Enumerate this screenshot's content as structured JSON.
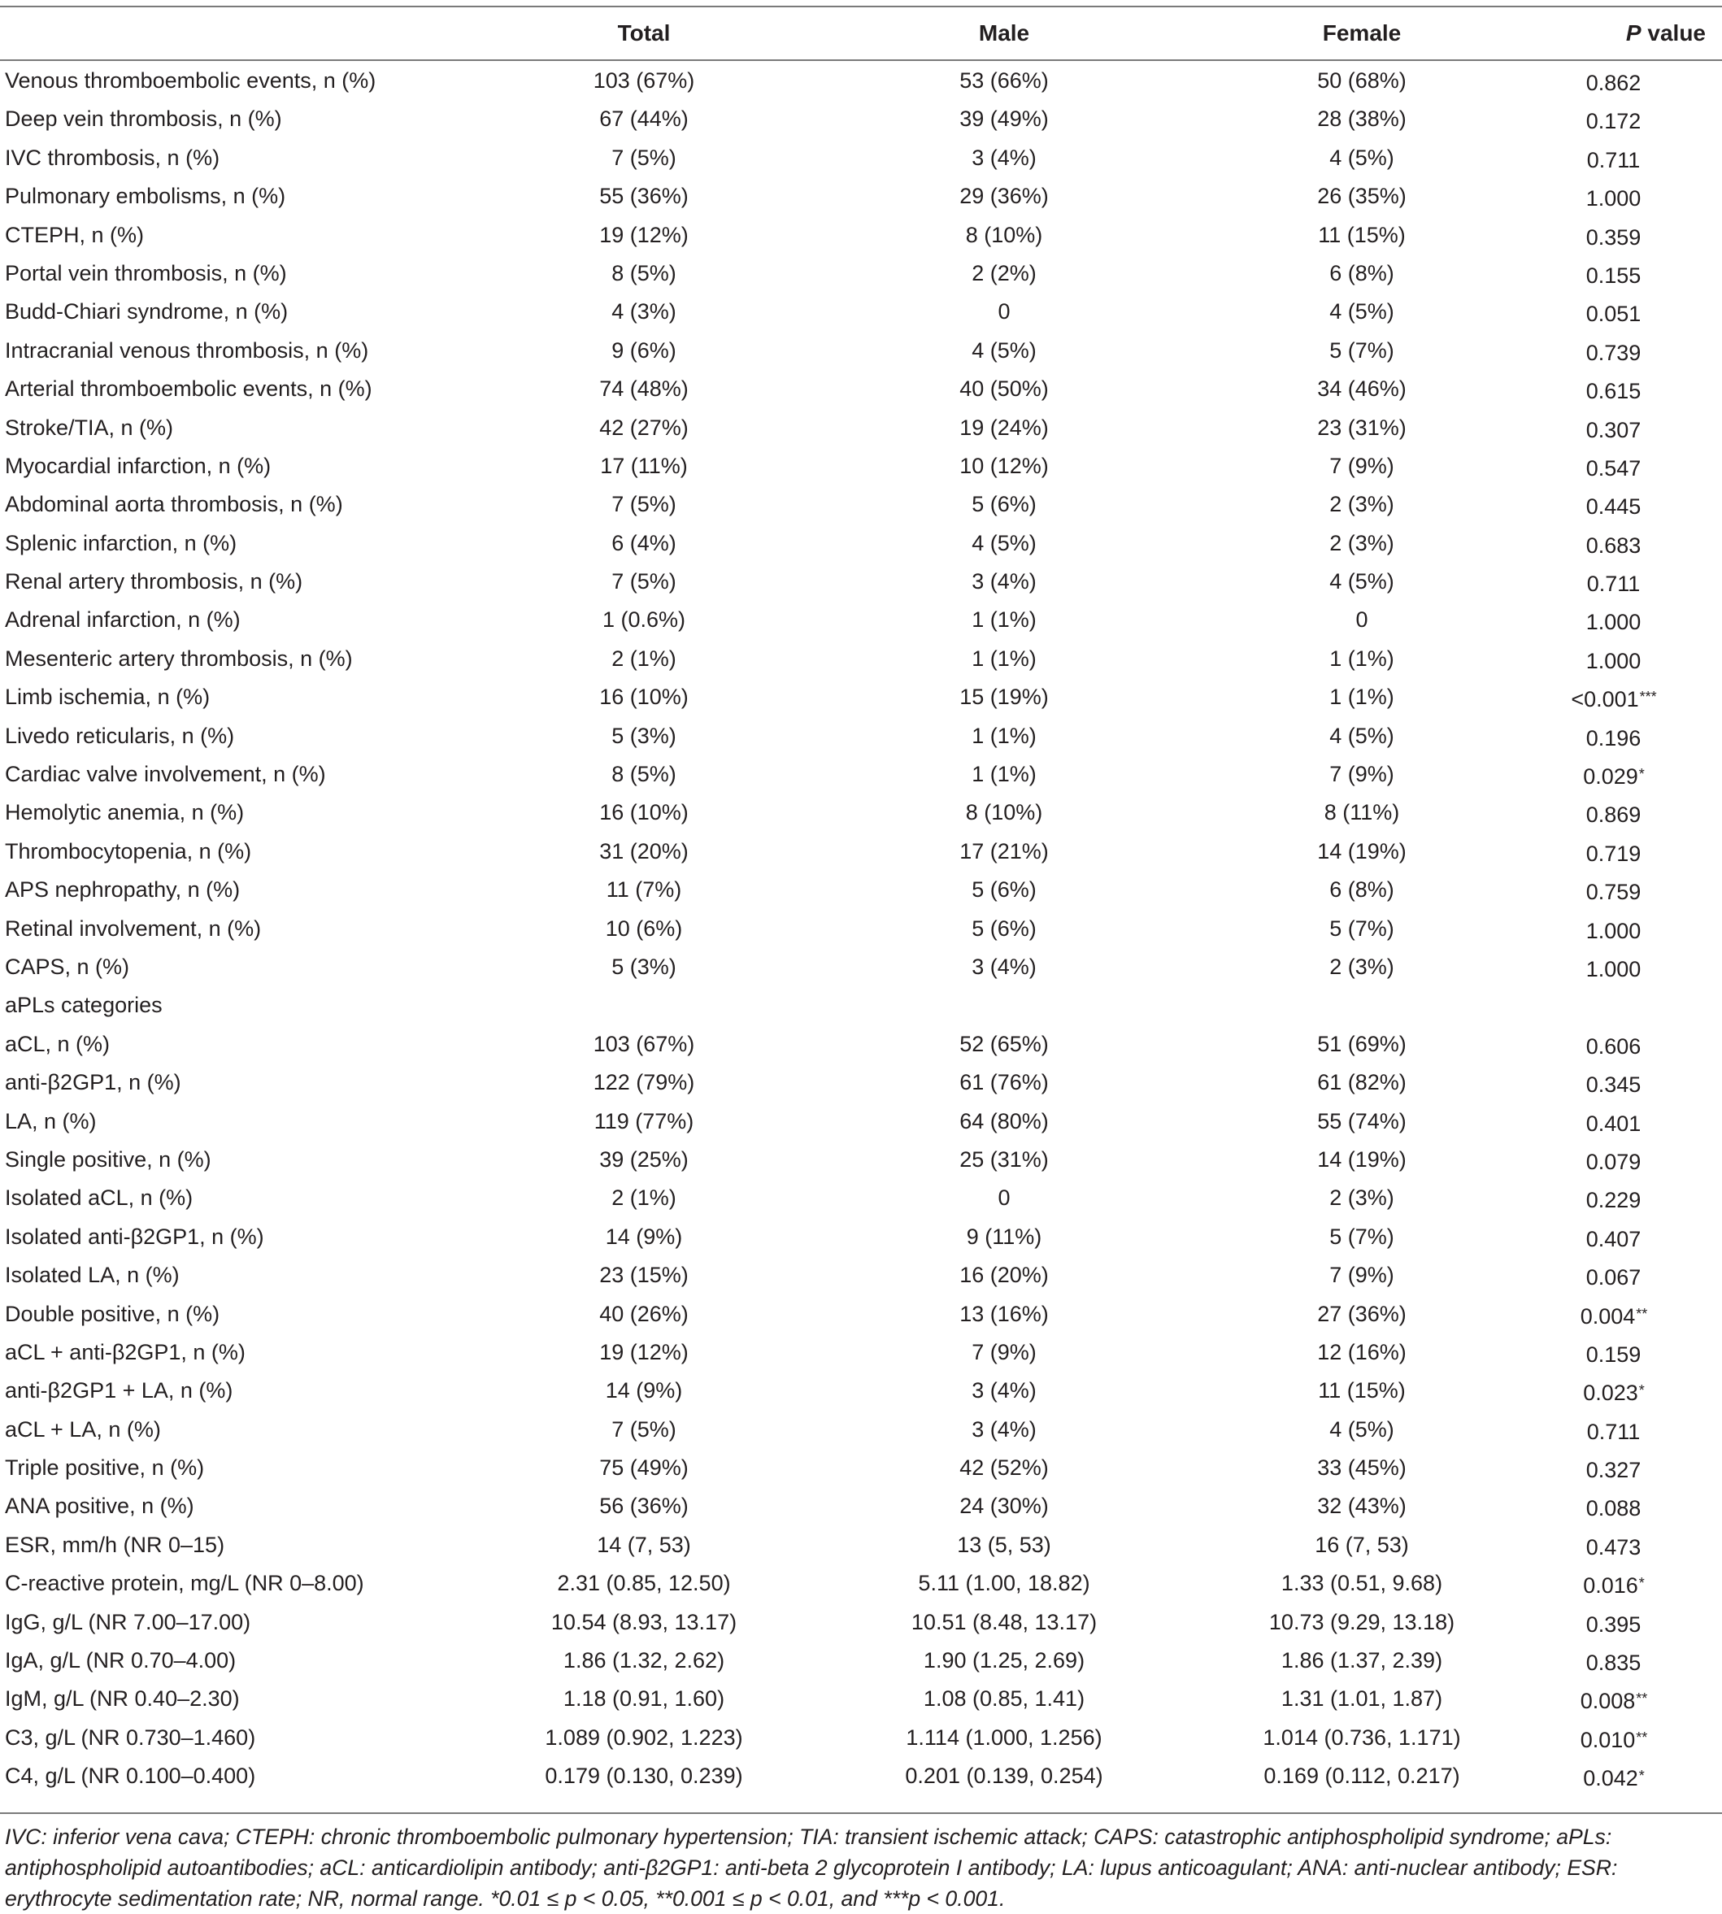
{
  "header": {
    "col_total": "Total",
    "col_male": "Male",
    "col_female": "Female",
    "col_p_italic": "P",
    "col_p_rest": " value"
  },
  "rows": [
    {
      "label": "Venous thromboembolic events, n (%)",
      "total": "103 (67%)",
      "male": "53 (66%)",
      "female": "50 (68%)",
      "p": "0.862",
      "sig": ""
    },
    {
      "label": "Deep vein thrombosis, n (%)",
      "total": "67 (44%)",
      "male": "39 (49%)",
      "female": "28 (38%)",
      "p": "0.172",
      "sig": ""
    },
    {
      "label": "IVC thrombosis, n (%)",
      "total": "7 (5%)",
      "male": "3 (4%)",
      "female": "4 (5%)",
      "p": "0.711",
      "sig": ""
    },
    {
      "label": "Pulmonary embolisms, n (%)",
      "total": "55 (36%)",
      "male": "29 (36%)",
      "female": "26 (35%)",
      "p": "1.000",
      "sig": ""
    },
    {
      "label": "CTEPH, n (%)",
      "total": "19 (12%)",
      "male": "8 (10%)",
      "female": "11 (15%)",
      "p": "0.359",
      "sig": ""
    },
    {
      "label": "Portal vein thrombosis, n (%)",
      "total": "8 (5%)",
      "male": "2 (2%)",
      "female": "6 (8%)",
      "p": "0.155",
      "sig": ""
    },
    {
      "label": "Budd-Chiari syndrome, n (%)",
      "total": "4 (3%)",
      "male": "0",
      "female": "4 (5%)",
      "p": "0.051",
      "sig": ""
    },
    {
      "label": "Intracranial venous thrombosis, n (%)",
      "total": "9 (6%)",
      "male": "4 (5%)",
      "female": "5 (7%)",
      "p": "0.739",
      "sig": ""
    },
    {
      "label": "Arterial thromboembolic events, n (%)",
      "total": "74 (48%)",
      "male": "40 (50%)",
      "female": "34 (46%)",
      "p": "0.615",
      "sig": ""
    },
    {
      "label": "Stroke/TIA, n (%)",
      "total": "42 (27%)",
      "male": "19 (24%)",
      "female": "23 (31%)",
      "p": "0.307",
      "sig": ""
    },
    {
      "label": "Myocardial infarction, n (%)",
      "total": "17 (11%)",
      "male": "10 (12%)",
      "female": "7 (9%)",
      "p": "0.547",
      "sig": ""
    },
    {
      "label": "Abdominal aorta thrombosis, n (%)",
      "total": "7 (5%)",
      "male": "5 (6%)",
      "female": "2 (3%)",
      "p": "0.445",
      "sig": ""
    },
    {
      "label": "Splenic infarction, n (%)",
      "total": "6 (4%)",
      "male": "4 (5%)",
      "female": "2 (3%)",
      "p": "0.683",
      "sig": ""
    },
    {
      "label": "Renal artery thrombosis, n (%)",
      "total": "7 (5%)",
      "male": "3 (4%)",
      "female": "4 (5%)",
      "p": "0.711",
      "sig": ""
    },
    {
      "label": "Adrenal infarction, n (%)",
      "total": "1 (0.6%)",
      "male": "1 (1%)",
      "female": "0",
      "p": "1.000",
      "sig": ""
    },
    {
      "label": "Mesenteric artery thrombosis, n (%)",
      "total": "2 (1%)",
      "male": "1 (1%)",
      "female": "1 (1%)",
      "p": "1.000",
      "sig": ""
    },
    {
      "label": "Limb ischemia, n (%)",
      "total": "16 (10%)",
      "male": "15 (19%)",
      "female": "1 (1%)",
      "p": "<0.001",
      "sig": "***"
    },
    {
      "label": "Livedo reticularis, n (%)",
      "total": "5 (3%)",
      "male": "1 (1%)",
      "female": "4 (5%)",
      "p": "0.196",
      "sig": ""
    },
    {
      "label": "Cardiac valve involvement, n (%)",
      "total": "8 (5%)",
      "male": "1 (1%)",
      "female": "7 (9%)",
      "p": "0.029",
      "sig": "*"
    },
    {
      "label": "Hemolytic anemia, n (%)",
      "total": "16 (10%)",
      "male": "8 (10%)",
      "female": "8 (11%)",
      "p": "0.869",
      "sig": ""
    },
    {
      "label": "Thrombocytopenia, n (%)",
      "total": "31 (20%)",
      "male": "17 (21%)",
      "female": "14 (19%)",
      "p": "0.719",
      "sig": ""
    },
    {
      "label": "APS nephropathy, n (%)",
      "total": "11 (7%)",
      "male": "5 (6%)",
      "female": "6 (8%)",
      "p": "0.759",
      "sig": ""
    },
    {
      "label": "Retinal involvement, n (%)",
      "total": "10 (6%)",
      "male": "5 (6%)",
      "female": "5 (7%)",
      "p": "1.000",
      "sig": ""
    },
    {
      "label": "CAPS, n (%)",
      "total": "5 (3%)",
      "male": "3 (4%)",
      "female": "2 (3%)",
      "p": "1.000",
      "sig": ""
    },
    {
      "label": "aPLs categories",
      "total": "",
      "male": "",
      "female": "",
      "p": "",
      "sig": ""
    },
    {
      "label": "aCL, n (%)",
      "total": "103 (67%)",
      "male": "52 (65%)",
      "female": "51 (69%)",
      "p": "0.606",
      "sig": ""
    },
    {
      "label": "anti-β2GP1, n (%)",
      "total": "122 (79%)",
      "male": "61 (76%)",
      "female": "61 (82%)",
      "p": "0.345",
      "sig": ""
    },
    {
      "label": "LA, n (%)",
      "total": "119 (77%)",
      "male": "64 (80%)",
      "female": "55 (74%)",
      "p": "0.401",
      "sig": ""
    },
    {
      "label": "Single positive, n (%)",
      "total": "39 (25%)",
      "male": "25 (31%)",
      "female": "14 (19%)",
      "p": "0.079",
      "sig": ""
    },
    {
      "label": "Isolated aCL, n (%)",
      "total": "2 (1%)",
      "male": "0",
      "female": "2 (3%)",
      "p": "0.229",
      "sig": ""
    },
    {
      "label": "Isolated anti-β2GP1, n (%)",
      "total": "14 (9%)",
      "male": "9 (11%)",
      "female": "5 (7%)",
      "p": "0.407",
      "sig": ""
    },
    {
      "label": "Isolated LA, n (%)",
      "total": "23 (15%)",
      "male": "16 (20%)",
      "female": "7 (9%)",
      "p": "0.067",
      "sig": ""
    },
    {
      "label": "Double positive, n (%)",
      "total": "40 (26%)",
      "male": "13 (16%)",
      "female": "27 (36%)",
      "p": "0.004",
      "sig": "**"
    },
    {
      "label": "aCL + anti-β2GP1, n (%)",
      "total": "19 (12%)",
      "male": "7 (9%)",
      "female": "12 (16%)",
      "p": "0.159",
      "sig": ""
    },
    {
      "label": "anti-β2GP1 + LA, n (%)",
      "total": "14 (9%)",
      "male": "3 (4%)",
      "female": "11 (15%)",
      "p": "0.023",
      "sig": "*"
    },
    {
      "label": "aCL + LA, n (%)",
      "total": "7 (5%)",
      "male": "3 (4%)",
      "female": "4 (5%)",
      "p": "0.711",
      "sig": ""
    },
    {
      "label": "Triple positive, n (%)",
      "total": "75 (49%)",
      "male": "42 (52%)",
      "female": "33 (45%)",
      "p": "0.327",
      "sig": ""
    },
    {
      "label": "ANA positive, n (%)",
      "total": "56 (36%)",
      "male": "24 (30%)",
      "female": "32 (43%)",
      "p": "0.088",
      "sig": ""
    },
    {
      "label": "ESR, mm/h (NR 0–15)",
      "total": "14 (7, 53)",
      "male": "13 (5, 53)",
      "female": "16 (7, 53)",
      "p": "0.473",
      "sig": ""
    },
    {
      "label": "C-reactive protein, mg/L (NR 0–8.00)",
      "total": "2.31 (0.85, 12.50)",
      "male": "5.11 (1.00, 18.82)",
      "female": "1.33 (0.51, 9.68)",
      "p": "0.016",
      "sig": "*"
    },
    {
      "label": "IgG, g/L (NR 7.00–17.00)",
      "total": "10.54 (8.93, 13.17)",
      "male": "10.51 (8.48, 13.17)",
      "female": "10.73 (9.29, 13.18)",
      "p": "0.395",
      "sig": ""
    },
    {
      "label": "IgA, g/L (NR 0.70–4.00)",
      "total": "1.86 (1.32, 2.62)",
      "male": "1.90 (1.25, 2.69)",
      "female": "1.86 (1.37, 2.39)",
      "p": "0.835",
      "sig": ""
    },
    {
      "label": "IgM, g/L (NR 0.40–2.30)",
      "total": "1.18 (0.91, 1.60)",
      "male": "1.08 (0.85, 1.41)",
      "female": "1.31 (1.01, 1.87)",
      "p": "0.008",
      "sig": "**"
    },
    {
      "label": "C3, g/L (NR 0.730–1.460)",
      "total": "1.089 (0.902, 1.223)",
      "male": "1.114 (1.000, 1.256)",
      "female": "1.014 (0.736, 1.171)",
      "p": "0.010",
      "sig": "**"
    },
    {
      "label": "C4, g/L (NR 0.100–0.400)",
      "total": "0.179 (0.130, 0.239)",
      "male": "0.201 (0.139, 0.254)",
      "female": "0.169 (0.112, 0.217)",
      "p": "0.042",
      "sig": "*"
    }
  ],
  "footnote": "IVC: inferior vena cava; CTEPH: chronic thromboembolic pulmonary hypertension; TIA: transient ischemic attack; CAPS: catastrophic antiphospholipid syndrome; aPLs: antiphospholipid autoantibodies; aCL: anticardiolipin antibody; anti-β2GP1: anti-beta 2 glycoprotein I antibody; LA: lupus anticoagulant; ANA: anti-nuclear antibody; ESR: erythrocyte sedimentation rate; NR, normal range. *0.01 ≤ p < 0.05, **0.001 ≤ p < 0.01, and ***p < 0.001."
}
